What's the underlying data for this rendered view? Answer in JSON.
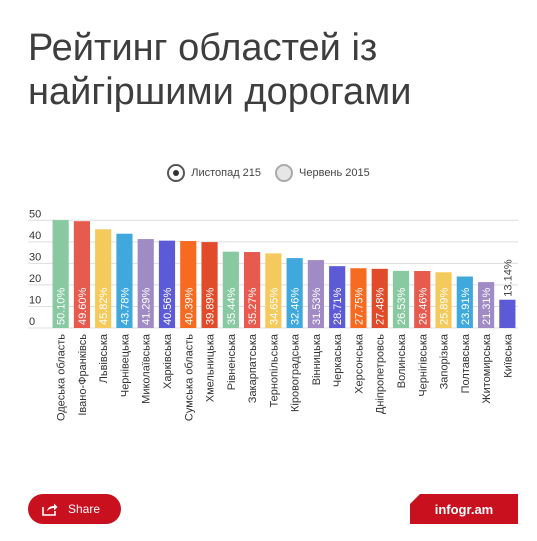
{
  "title": "Рейтинг областей із найгіршими дорогами",
  "legend": {
    "items": [
      {
        "label": "Листопад 215",
        "selected": true
      },
      {
        "label": "Червень 2015",
        "selected": false
      }
    ]
  },
  "share": {
    "label": "Share",
    "icon": "share-arrow-icon"
  },
  "branding": {
    "label": "infogr.am"
  },
  "colors": {
    "brand_red": "#c8101e",
    "palette": [
      "#89c9a2",
      "#e75a4e",
      "#f5ca5c",
      "#3fa9de",
      "#a08bc5",
      "#5d5ad8",
      "#f76b21",
      "#e24b2a"
    ]
  },
  "chart_data": {
    "type": "bar",
    "series_name": "Листопад 215",
    "categories": [
      "Одеська область",
      "Івано-Франківсь",
      "Львівська",
      "Чернівецька",
      "Миколаївська",
      "Харківська",
      "Сумська область",
      "Хмельницька",
      "Рівненська",
      "Закарпатська",
      "Тернопільська",
      "Кіровоградська",
      "Вінницька",
      "Черкаська",
      "Херсонська",
      "Дніпропетровсь",
      "Волинська",
      "Чернігівська",
      "Запорізька",
      "Полтавська",
      "Житомирська",
      "Київська"
    ],
    "values": [
      50.1,
      49.6,
      45.82,
      43.78,
      41.29,
      40.56,
      40.39,
      39.89,
      35.44,
      35.27,
      34.65,
      32.46,
      31.53,
      28.71,
      27.75,
      27.48,
      26.53,
      26.46,
      25.89,
      23.91,
      21.31,
      13.14
    ],
    "labels": [
      "50.10%",
      "49.60%",
      "45.82%",
      "43.78%",
      "41.29%",
      "40.56%",
      "40.39%",
      "39.89%",
      "35.44%",
      "35.27%",
      "34.65%",
      "32.46%",
      "31.53%",
      "28.71%",
      "27.75%",
      "27.48%",
      "26.53%",
      "26.46%",
      "25.89%",
      "23.91%",
      "21.31%",
      "13.14%"
    ],
    "bar_colors": [
      "#89c9a2",
      "#e75a4e",
      "#f5ca5c",
      "#3fa9de",
      "#a08bc5",
      "#5d5ad8",
      "#f76b21",
      "#e24b2a",
      "#89c9a2",
      "#e75a4e",
      "#f5ca5c",
      "#3fa9de",
      "#a08bc5",
      "#5d5ad8",
      "#f76b21",
      "#e24b2a",
      "#89c9a2",
      "#e75a4e",
      "#f5ca5c",
      "#3fa9de",
      "#a08bc5",
      "#5d5ad8"
    ],
    "yticks": [
      0,
      10,
      20,
      30,
      40,
      50
    ],
    "ylim": [
      0,
      52
    ],
    "grid": true,
    "legend_position": "top-center"
  }
}
